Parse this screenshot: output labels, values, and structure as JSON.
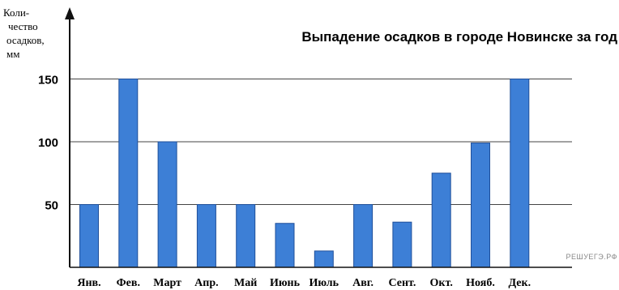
{
  "chart_data": {
    "type": "bar",
    "title": "Выпадение осадков в городе Новинске за год",
    "ylabel": [
      "Коли-",
      "чество",
      "осадков,",
      "мм"
    ],
    "xlabel": "",
    "categories": [
      "Янв.",
      "Фев.",
      "Март",
      "Апр.",
      "Май",
      "Июнь",
      "Июль",
      "Авг.",
      "Сент.",
      "Окт.",
      "Нояб.",
      "Дек."
    ],
    "values": [
      50,
      150,
      100,
      50,
      50,
      35,
      13,
      50,
      36,
      75,
      99,
      150
    ],
    "ylim": [
      0,
      165
    ],
    "yticks": [
      50,
      100,
      150
    ],
    "grid": true,
    "bar_color": "#3d7fd6",
    "bar_edge_color": "#1f4f9a"
  },
  "watermark": "РЕШУЕГЭ.РФ"
}
